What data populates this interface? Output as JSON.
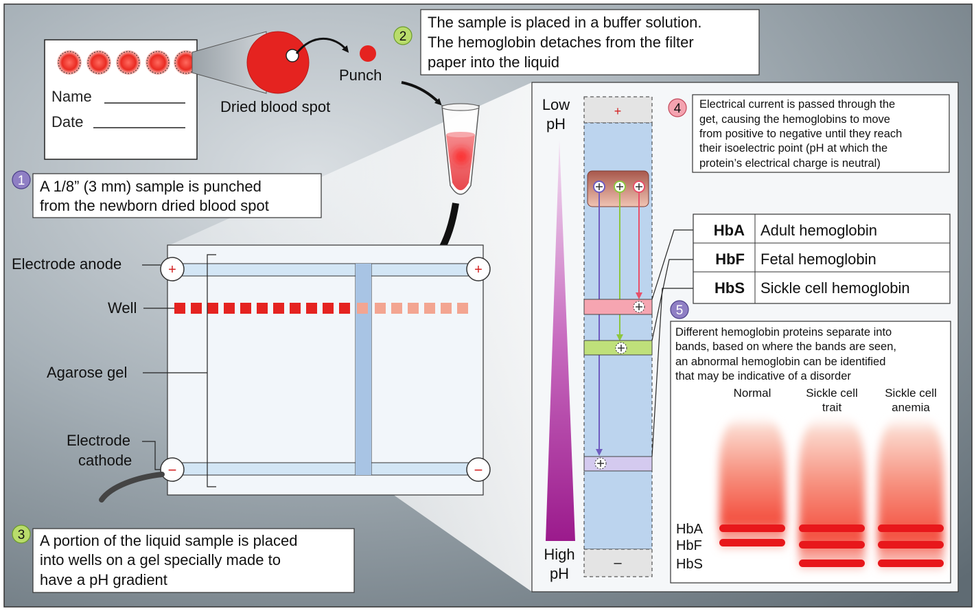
{
  "card": {
    "name_label": "Name",
    "date_label": "Date",
    "dried_blood_spot_label": "Dried blood spot",
    "punch_label": "Punch"
  },
  "steps": [
    {
      "number": "1",
      "lines": [
        "A 1/8” (3 mm) sample is punched",
        "from the newborn dried blood spot"
      ]
    },
    {
      "number": "2",
      "lines": [
        "The sample is placed in a buffer solution.",
        "The hemoglobin detaches from the filter",
        "paper into the liquid"
      ]
    },
    {
      "number": "3",
      "lines": [
        "A portion of the liquid sample is placed",
        "into wells on a gel specially made to",
        "have a pH gradient"
      ]
    },
    {
      "number": "4",
      "lines": [
        "Electrical current is passed through the",
        "get, causing the hemoglobins to move",
        "from positive to negative until they reach",
        "their isoelectric point (pH at which the",
        "protein’s electrical charge is neutral)"
      ]
    },
    {
      "number": "5",
      "lines": [
        "Different hemoglobin proteins separate into",
        "bands, based on where the bands are seen,",
        "an abnormal hemoglobin can be identified",
        "that may be indicative of a disorder"
      ]
    }
  ],
  "gel": {
    "electrode_anode_label": "Electrode anode",
    "well_label": "Well",
    "agarose_gel_label": "Agarose gel",
    "electrode_cathode_label": [
      "Electrode",
      "cathode"
    ],
    "plus_sign": "+",
    "minus_sign": "−"
  },
  "ph_panel": {
    "low_ph_label": [
      "Low",
      "pH"
    ],
    "high_ph_label": [
      "High",
      "pH"
    ],
    "positive_sign": "+",
    "negative_sign": "–"
  },
  "legend": [
    {
      "abbr": "HbA",
      "name": "Adult hemoglobin"
    },
    {
      "abbr": "HbF",
      "name": "Fetal hemoglobin"
    },
    {
      "abbr": "HbS",
      "name": "Sickle cell hemoglobin"
    }
  ],
  "results": {
    "columns": [
      {
        "label": [
          "Normal"
        ],
        "bands": [
          "HbA",
          "HbF"
        ]
      },
      {
        "label": [
          "Sickle cell",
          "trait"
        ],
        "bands": [
          "HbA",
          "HbF",
          "HbS"
        ]
      },
      {
        "label": [
          "Sickle cell",
          "anemia"
        ],
        "bands": [
          "HbA",
          "HbF",
          "HbS"
        ]
      }
    ],
    "band_labels": [
      "HbA",
      "HbF",
      "HbS"
    ]
  },
  "colors": {
    "blood_red": "#e52320",
    "gel_blue": "#bcd4ee",
    "step_purple": "#8f7fc4",
    "step_green": "#b9dc6b",
    "step_pink": "#f4a3b0",
    "gradient_purple": "#9b1a8c"
  }
}
